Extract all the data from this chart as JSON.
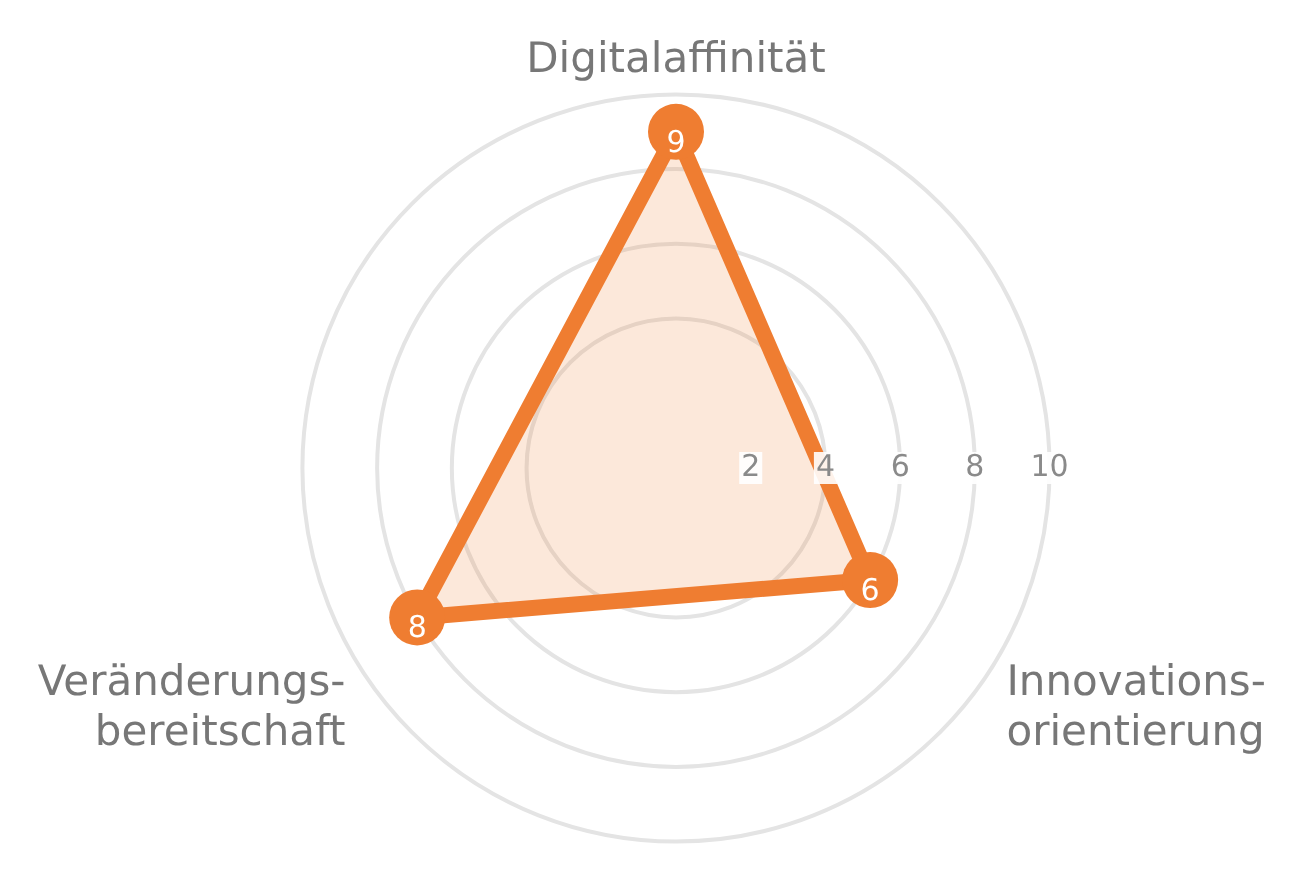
{
  "chart_data": {
    "type": "radar",
    "categories": [
      "Digitalaffinität",
      "Innovations-orientierung",
      "Veränderungs-bereitschaft"
    ],
    "series": [
      {
        "color": "#ef7d31",
        "values": [
          9,
          6,
          8
        ]
      }
    ],
    "ylim": [
      0,
      10
    ],
    "yticks": [
      2,
      4,
      6,
      8,
      10
    ],
    "grid": true,
    "legend": false,
    "data_labels": true
  }
}
